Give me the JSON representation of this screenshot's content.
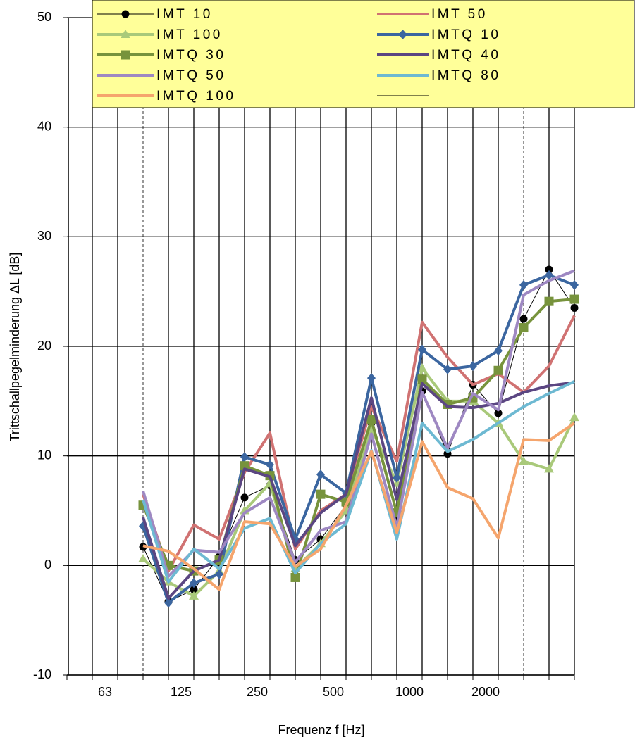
{
  "chart_data": {
    "type": "line",
    "x_label": "Frequenz f [Hz]",
    "y_label": "Trittschallpegelminderung ΔL [dB]",
    "categories": [
      null,
      "63",
      null,
      null,
      "125",
      null,
      null,
      "250",
      null,
      null,
      "500",
      null,
      null,
      "1000",
      null,
      null,
      "2000",
      null,
      null,
      null,
      null
    ],
    "ylim": [
      -10,
      50
    ],
    "yticks": [
      -10,
      0,
      10,
      20,
      30,
      40,
      50
    ],
    "grid": true,
    "legend": "top",
    "series": [
      {
        "name": "IMT 10",
        "color": "#000000",
        "marker": "circle",
        "width": 1,
        "values": [
          null,
          null,
          null,
          1.7,
          -3.3,
          -2.2,
          0.8,
          6.2,
          7.3,
          0.5,
          2.4,
          5.5,
          13,
          4.5,
          15.9,
          10.2,
          16.5,
          13.9,
          22.5,
          27,
          23.5
        ]
      },
      {
        "name": "IMT 50",
        "color": "#d07272",
        "width": 4,
        "values": [
          null,
          null,
          null,
          6.5,
          -0.5,
          3.7,
          2.4,
          8.5,
          12.1,
          1.5,
          5,
          6.5,
          14.5,
          9.5,
          22.2,
          19,
          16.5,
          17.5,
          15.8,
          18.2,
          22.8
        ]
      },
      {
        "name": "IMT 100",
        "color": "#a9c97a",
        "marker": "triangle",
        "width": 4,
        "values": [
          null,
          null,
          null,
          0.6,
          -1.5,
          -2.8,
          -0.5,
          5,
          7.5,
          -0.3,
          2,
          5,
          12.5,
          7.5,
          18,
          15,
          15,
          13,
          9.5,
          8.8,
          13.5
        ]
      },
      {
        "name": "IMTQ 10",
        "color": "#3b66a0",
        "marker": "diamond",
        "width": 4,
        "values": [
          null,
          null,
          null,
          3.6,
          -3.4,
          -1.6,
          -0.8,
          9.9,
          9.2,
          2.4,
          8.3,
          6.6,
          17.1,
          8,
          19.7,
          17.9,
          18.2,
          19.6,
          25.6,
          26.5,
          25.6
        ]
      },
      {
        "name": "IMTQ 30",
        "color": "#77933c",
        "marker": "square",
        "width": 4,
        "values": [
          null,
          null,
          null,
          5.5,
          0,
          -0.5,
          0.5,
          9.1,
          8.2,
          -1.1,
          6.5,
          5.8,
          13.3,
          4.8,
          17,
          14.7,
          15.3,
          17.8,
          21.7,
          24.1,
          24.3
        ]
      },
      {
        "name": "IMTQ 40",
        "color": "#5b4682",
        "width": 4,
        "values": [
          null,
          null,
          null,
          4.4,
          -3,
          -0.5,
          0.5,
          8.8,
          8.1,
          1.8,
          4.8,
          6.5,
          15.3,
          6,
          16.6,
          14.5,
          14.4,
          14.8,
          15.8,
          16.4,
          16.7
        ]
      },
      {
        "name": "IMTQ 50",
        "color": "#9e88c2",
        "width": 4,
        "values": [
          null,
          null,
          null,
          6.8,
          -1,
          1.4,
          1.2,
          4.8,
          6.2,
          0.3,
          3.2,
          4,
          12,
          3.5,
          15.8,
          10.7,
          15.7,
          14.2,
          24.7,
          26,
          26.9
        ]
      },
      {
        "name": "IMTQ 80",
        "color": "#6db9d2",
        "width": 4,
        "values": [
          null,
          null,
          null,
          6,
          -1.5,
          1.5,
          -0.3,
          3.4,
          4.3,
          -0.7,
          2,
          3.8,
          10.5,
          2.4,
          13,
          10.4,
          11.5,
          13,
          14.5,
          15.7,
          16.8
        ]
      },
      {
        "name": "IMTQ 100",
        "color": "#f5a56d",
        "width": 4,
        "values": [
          null,
          null,
          null,
          1.8,
          1.3,
          -0.3,
          -2.2,
          4,
          3.8,
          -0.1,
          1.5,
          5.5,
          10.4,
          3,
          11.3,
          7.1,
          6.1,
          2.5,
          11.5,
          11.4,
          13
        ]
      }
    ]
  }
}
